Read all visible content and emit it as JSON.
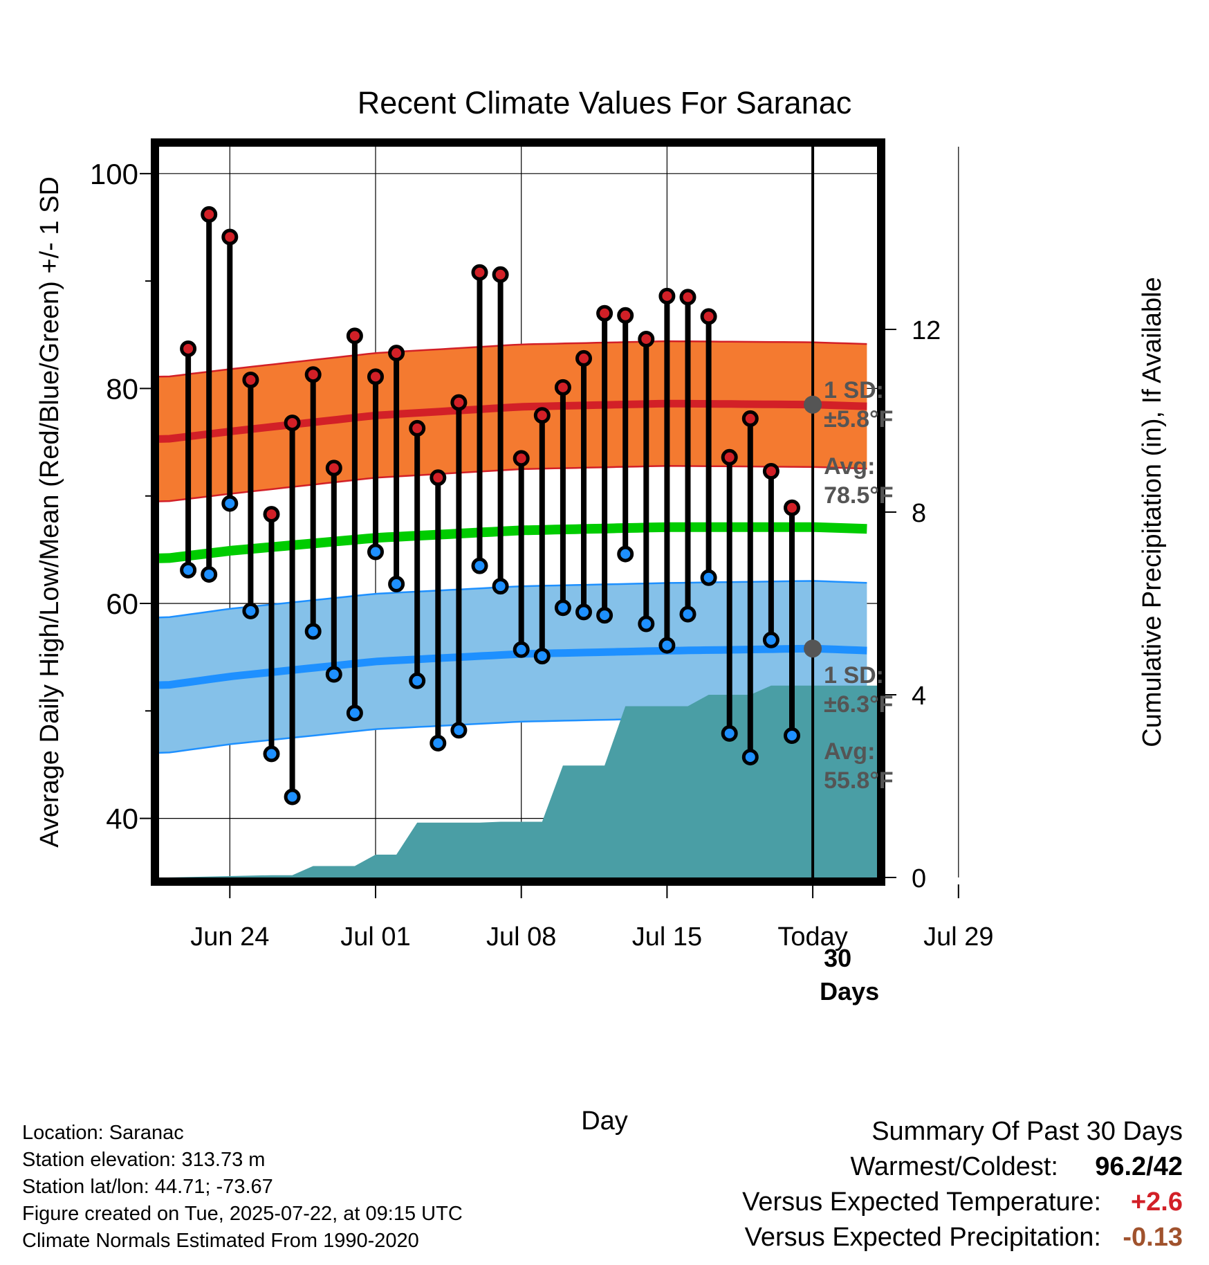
{
  "chart_data": {
    "type": "line",
    "title": "Recent Climate Values For Saranac",
    "xlabel": "Day",
    "ylabel": "Average Daily High/Low/Mean (Red/Blue/Green) +/- 1 SD",
    "y2label": "Cumulative Precipitation (in), If Available",
    "ylim": [
      34.5,
      102.5
    ],
    "y_ticks": [
      40,
      60,
      80,
      100
    ],
    "y2lim": [
      0,
      16
    ],
    "y2_ticks": [
      0,
      4,
      8,
      12
    ],
    "x_ticks": [
      "Jun 24",
      "Jul 01",
      "Jul 08",
      "Jul 15",
      "Today",
      "Jul 29"
    ],
    "grid": true,
    "today_marker_label": "30 Days",
    "annotations": {
      "high_sd": "1 SD:",
      "high_sd_value": "±5.8°F",
      "high_avg": "Avg:",
      "high_avg_value": "78.5°F",
      "low_sd": "1 SD:",
      "low_sd_value": "±6.3°F",
      "low_avg": "Avg:",
      "low_avg_value": "55.8°F"
    },
    "colors": {
      "high_band": "#f47a30",
      "high_line": "#d22027",
      "low_band": "#85c1e9",
      "low_line": "#1e90ff",
      "mean_line": "#00cc00",
      "precip": "#4a9ea5",
      "high_dot": "#d22027",
      "low_dot": "#1e90ff",
      "today_dot": "#555555"
    },
    "daily": {
      "dates": [
        "Jun 22",
        "Jun 23",
        "Jun 24",
        "Jun 25",
        "Jun 26",
        "Jun 27",
        "Jun 28",
        "Jun 29",
        "Jun 30",
        "Jul 01",
        "Jul 02",
        "Jul 03",
        "Jul 04",
        "Jul 05",
        "Jul 06",
        "Jul 07",
        "Jul 08",
        "Jul 09",
        "Jul 10",
        "Jul 11",
        "Jul 12",
        "Jul 13",
        "Jul 14",
        "Jul 15",
        "Jul 16",
        "Jul 17",
        "Jul 18",
        "Jul 19",
        "Jul 20",
        "Jul 21"
      ],
      "highs": [
        83.7,
        96.2,
        94.1,
        80.8,
        68.3,
        76.8,
        81.3,
        72.6,
        84.9,
        81.1,
        83.3,
        76.3,
        71.7,
        78.7,
        90.8,
        90.6,
        73.5,
        77.5,
        80.1,
        82.8,
        87.0,
        86.8,
        84.6,
        88.6,
        88.5,
        86.7,
        73.6,
        77.2,
        72.3,
        68.9
      ],
      "lows": [
        63.1,
        62.7,
        69.3,
        59.3,
        46.0,
        42.0,
        57.4,
        53.4,
        49.8,
        64.8,
        61.8,
        52.8,
        47.0,
        48.2,
        63.5,
        61.6,
        55.7,
        55.1,
        59.6,
        59.2,
        58.9,
        64.6,
        58.1,
        56.1,
        59.0,
        62.4,
        47.9,
        45.7,
        56.6,
        47.7
      ]
    },
    "normals": {
      "dates": [
        "Jun 21",
        "Jun 24",
        "Jul 01",
        "Jul 08",
        "Jul 15",
        "Jul 22",
        "Aug 01"
      ],
      "high_avg": [
        75.3,
        76.0,
        77.5,
        78.3,
        78.6,
        78.5,
        77.9
      ],
      "high_sd": 5.8,
      "low_avg": [
        52.4,
        53.2,
        54.6,
        55.3,
        55.6,
        55.8,
        55.1
      ],
      "low_sd": 6.3,
      "mean_avg": [
        64.2,
        64.9,
        66.1,
        66.8,
        67.1,
        67.1,
        66.5
      ]
    },
    "precip_cumulative": {
      "dates": [
        "Jun 21",
        "Jun 26",
        "Jun 27",
        "Jun 28",
        "Jun 29",
        "Jun 30",
        "Jul 01",
        "Jul 02",
        "Jul 03",
        "Jul 04",
        "Jul 05",
        "Jul 06",
        "Jul 07",
        "Jul 08",
        "Jul 09",
        "Jul 10",
        "Jul 11",
        "Jul 12",
        "Jul 13",
        "Jul 14",
        "Jul 15",
        "Jul 16",
        "Jul 17",
        "Jul 18",
        "Jul 19",
        "Jul 20",
        "Jul 21",
        "Aug 01"
      ],
      "values": [
        0.0,
        0.05,
        0.05,
        0.25,
        0.25,
        0.25,
        0.5,
        0.5,
        1.2,
        1.2,
        1.2,
        1.2,
        1.22,
        1.22,
        1.22,
        2.45,
        2.45,
        2.45,
        3.75,
        3.75,
        3.75,
        3.75,
        4.0,
        4.0,
        4.0,
        4.2,
        4.2,
        4.2
      ]
    }
  },
  "info": {
    "location": "Location: Saranac",
    "elevation": "Station elevation: 313.73 m",
    "latlon": "Station lat/lon: 44.71; -73.67",
    "created": "Figure created on Tue, 2025-07-22, at 09:15 UTC",
    "normals_period": "Climate Normals Estimated From 1990-2020"
  },
  "summary": {
    "title": "Summary Of Past 30 Days",
    "warm_cold_label": "Warmest/Coldest:",
    "warm_cold_value": "96.2/42",
    "temp_label": "Versus Expected Temperature:",
    "temp_value": "+2.6",
    "precip_label": "Versus Expected Precipitation:",
    "precip_value": "-0.13"
  }
}
